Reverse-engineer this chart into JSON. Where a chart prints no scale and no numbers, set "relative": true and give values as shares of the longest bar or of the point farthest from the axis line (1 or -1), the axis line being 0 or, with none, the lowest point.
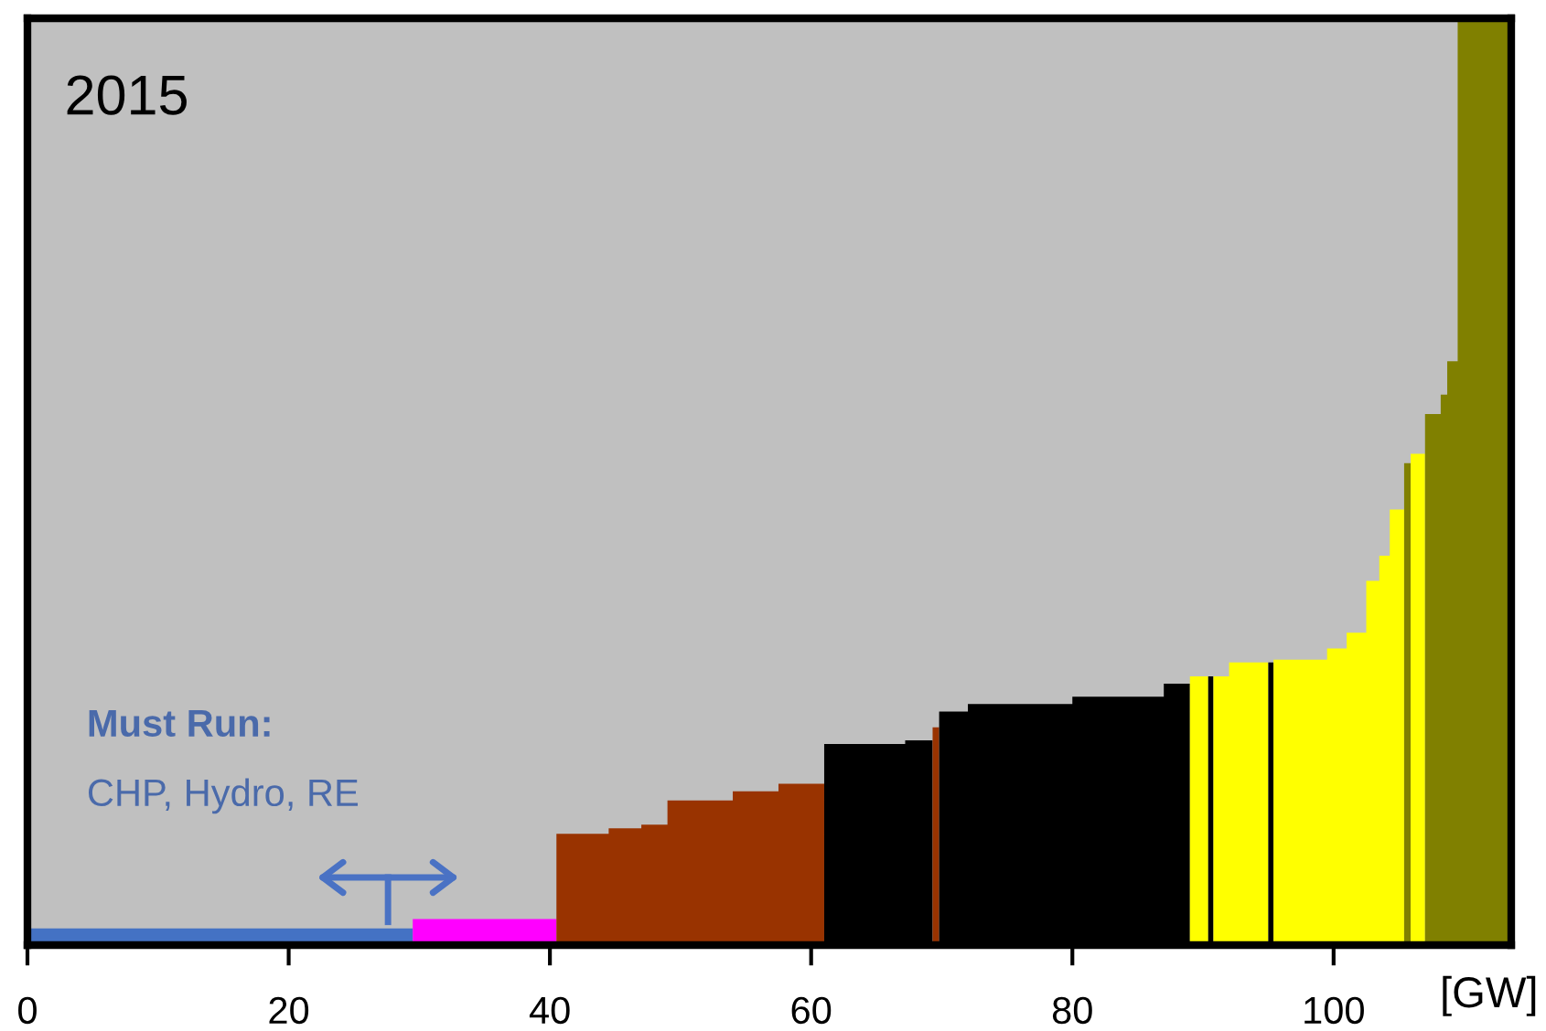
{
  "chart_data": {
    "type": "area",
    "relative": true,
    "xlabel": "[GW]",
    "xlim": [
      0,
      113.6
    ],
    "xticks": [
      0,
      20,
      40,
      60,
      80,
      100
    ],
    "grid": false,
    "annotations": [
      "2015",
      "Must Run:",
      "CHP, Hydro, RE"
    ],
    "series": [
      {
        "color": "#4472c4",
        "x": [
          0,
          29.5
        ],
        "values": [
          0.018,
          0.018
        ]
      },
      {
        "color": "#ff00ff",
        "x": [
          29.5,
          40.5
        ],
        "values": [
          0.028,
          0.028
        ]
      },
      {
        "color": "#993300",
        "x": [
          40.5,
          44.5,
          47,
          49,
          54,
          57.5,
          61
        ],
        "values": [
          0.12,
          0.126,
          0.13,
          0.156,
          0.166,
          0.174,
          0.174
        ]
      },
      {
        "color": "#000000",
        "x": [
          61,
          67.2,
          69.3
        ],
        "values": [
          0.217,
          0.221,
          0.221
        ]
      },
      {
        "color": "#993300",
        "x": [
          69.3,
          69.8
        ],
        "values": [
          0.235,
          0.235
        ]
      },
      {
        "color": "#000000",
        "x": [
          69.8,
          72,
          80,
          87,
          89
        ],
        "values": [
          0.252,
          0.26,
          0.268,
          0.282,
          0.282
        ]
      },
      {
        "color": "#ffff00",
        "x": [
          89,
          90.4
        ],
        "values": [
          0.29,
          0.29
        ]
      },
      {
        "color": "#000000",
        "x": [
          90.4,
          90.8
        ],
        "values": [
          0.29,
          0.29
        ]
      },
      {
        "color": "#ffff00",
        "x": [
          90.8,
          92,
          95
        ],
        "values": [
          0.29,
          0.305,
          0.305
        ]
      },
      {
        "color": "#000000",
        "x": [
          95,
          95.4
        ],
        "values": [
          0.305,
          0.305
        ]
      },
      {
        "color": "#ffff00",
        "x": [
          95.4,
          99.5,
          101,
          102.5,
          103.5,
          104.3,
          105.4
        ],
        "values": [
          0.308,
          0.32,
          0.337,
          0.393,
          0.42,
          0.47,
          0.47
        ]
      },
      {
        "color": "#808000",
        "x": [
          105.4,
          105.9
        ],
        "values": [
          0.52,
          0.52
        ]
      },
      {
        "color": "#ffff00",
        "x": [
          105.9,
          107
        ],
        "values": [
          0.53,
          0.53
        ]
      },
      {
        "color": "#808000",
        "x": [
          107,
          108.2,
          108.7,
          109.5,
          113.6
        ],
        "values": [
          0.573,
          0.594,
          0.63,
          1.0,
          1.0
        ]
      }
    ]
  }
}
